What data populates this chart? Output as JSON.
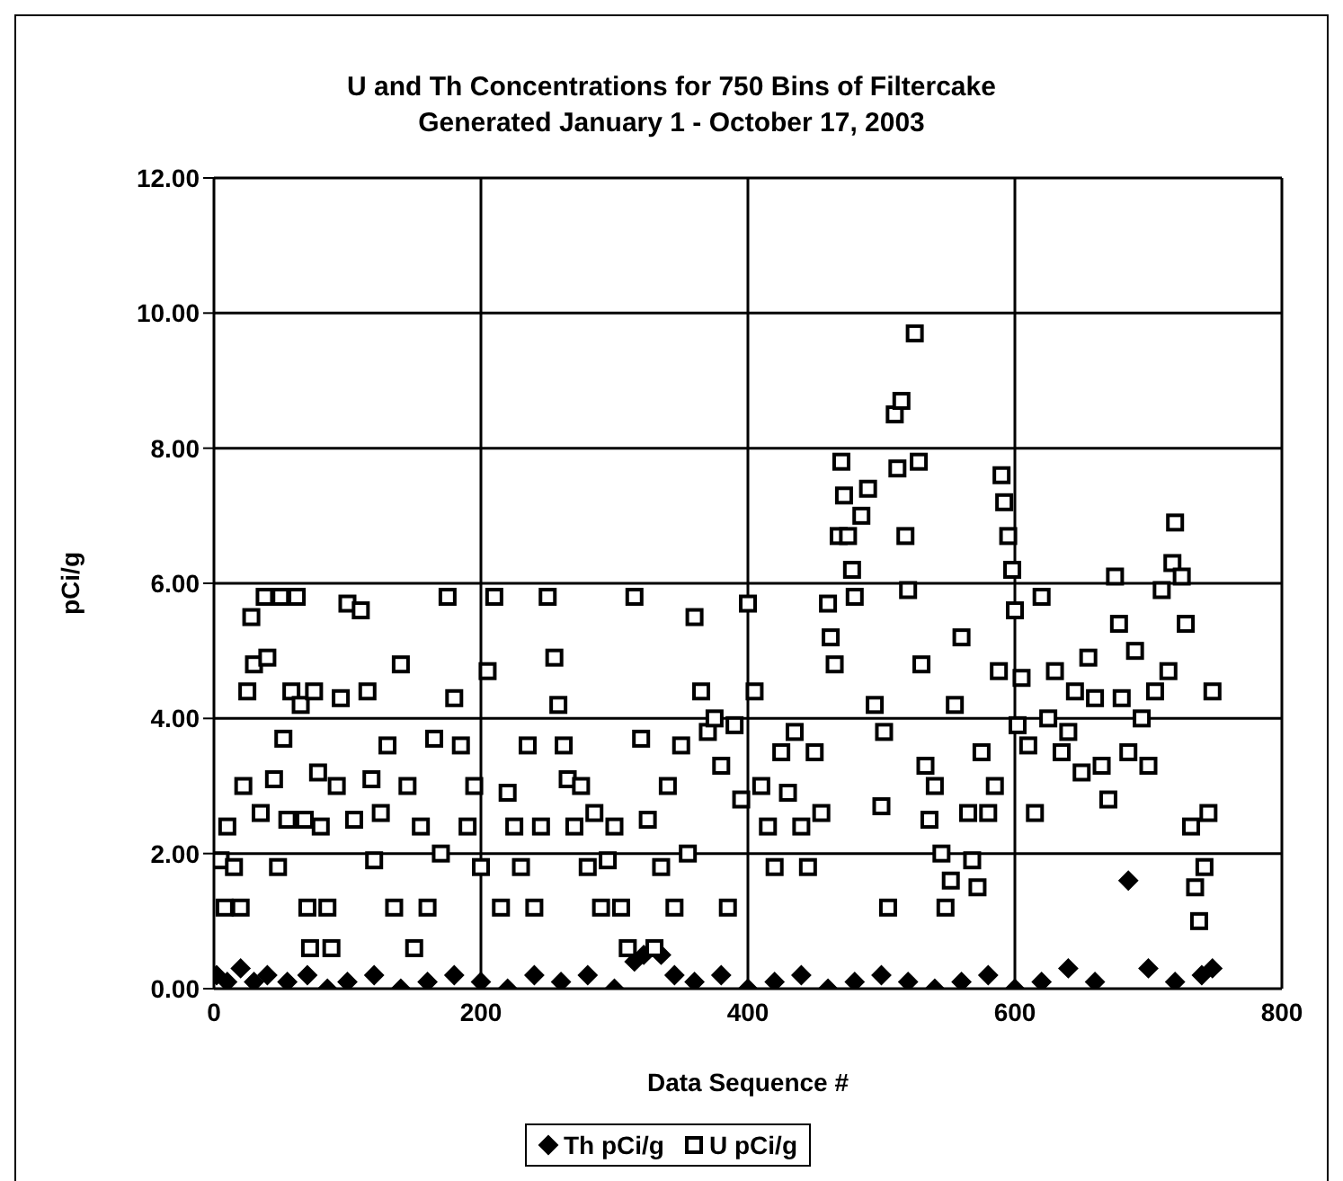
{
  "chart_data": {
    "type": "scatter",
    "title": "U and Th Concentrations for 750 Bins of Filtercake",
    "subtitle": "Generated January 1 - October 17, 2003",
    "xlabel": "Data Sequence #",
    "ylabel": "pCi/g",
    "xlim": [
      0,
      800
    ],
    "xticks": [
      0,
      200,
      400,
      600,
      800
    ],
    "ylim": [
      0,
      12
    ],
    "yticks": [
      {
        "value": 0,
        "label": "0.00"
      },
      {
        "value": 2,
        "label": "2.00"
      },
      {
        "value": 4,
        "label": "4.00"
      },
      {
        "value": 6,
        "label": "6.00"
      },
      {
        "value": 8,
        "label": "8.00"
      },
      {
        "value": 10,
        "label": "10.00"
      },
      {
        "value": 12,
        "label": "12.00"
      }
    ],
    "grid": true,
    "legend": "bottom",
    "series": [
      {
        "name": "Th pCi/g",
        "color": "#000000",
        "marker": "diamond",
        "x": [
          2,
          10,
          20,
          30,
          40,
          55,
          70,
          85,
          100,
          120,
          140,
          160,
          180,
          200,
          220,
          240,
          260,
          280,
          300,
          315,
          322,
          335,
          345,
          360,
          380,
          400,
          420,
          440,
          460,
          480,
          500,
          520,
          540,
          560,
          580,
          600,
          620,
          640,
          660,
          685,
          700,
          720,
          740,
          748
        ],
        "values": [
          0.2,
          0.1,
          0.3,
          0.1,
          0.2,
          0.1,
          0.2,
          0.0,
          0.1,
          0.2,
          0.0,
          0.1,
          0.2,
          0.1,
          0.0,
          0.2,
          0.1,
          0.2,
          0.0,
          0.4,
          0.5,
          0.5,
          0.2,
          0.1,
          0.2,
          0.0,
          0.1,
          0.2,
          0.0,
          0.1,
          0.2,
          0.1,
          0.0,
          0.1,
          0.2,
          0.0,
          0.1,
          0.3,
          0.1,
          1.6,
          0.3,
          0.1,
          0.2,
          0.3
        ]
      },
      {
        "name": "U pCi/g",
        "color": "#000000",
        "marker": "square",
        "x": [
          5,
          8,
          10,
          15,
          20,
          22,
          25,
          28,
          30,
          35,
          38,
          40,
          45,
          48,
          50,
          52,
          55,
          58,
          62,
          65,
          68,
          70,
          72,
          75,
          78,
          80,
          85,
          88,
          92,
          95,
          100,
          105,
          110,
          115,
          118,
          120,
          125,
          130,
          135,
          140,
          145,
          150,
          155,
          160,
          165,
          170,
          175,
          180,
          185,
          190,
          195,
          200,
          205,
          210,
          215,
          220,
          225,
          230,
          235,
          240,
          245,
          250,
          255,
          258,
          262,
          265,
          270,
          275,
          280,
          285,
          290,
          295,
          300,
          305,
          310,
          315,
          320,
          325,
          330,
          335,
          340,
          345,
          350,
          355,
          360,
          365,
          370,
          375,
          380,
          385,
          390,
          395,
          400,
          405,
          410,
          415,
          420,
          425,
          430,
          435,
          440,
          445,
          450,
          455,
          460,
          462,
          465,
          468,
          470,
          472,
          475,
          478,
          480,
          485,
          490,
          495,
          500,
          502,
          505,
          510,
          512,
          515,
          518,
          520,
          525,
          528,
          530,
          533,
          536,
          540,
          545,
          548,
          552,
          555,
          560,
          565,
          568,
          572,
          575,
          580,
          585,
          588,
          590,
          592,
          595,
          598,
          600,
          602,
          605,
          610,
          615,
          620,
          625,
          630,
          635,
          640,
          645,
          650,
          655,
          660,
          665,
          670,
          675,
          678,
          680,
          685,
          690,
          695,
          700,
          705,
          710,
          715,
          718,
          720,
          725,
          728,
          732,
          735,
          738,
          742,
          745,
          748
        ],
        "values": [
          1.9,
          1.2,
          2.4,
          1.8,
          1.2,
          3.0,
          4.4,
          5.5,
          4.8,
          2.6,
          5.8,
          4.9,
          3.1,
          1.8,
          5.8,
          3.7,
          2.5,
          4.4,
          5.8,
          4.2,
          2.5,
          1.2,
          0.6,
          4.4,
          3.2,
          2.4,
          1.2,
          0.6,
          3.0,
          4.3,
          5.7,
          2.5,
          5.6,
          4.4,
          3.1,
          1.9,
          2.6,
          3.6,
          1.2,
          4.8,
          3.0,
          0.6,
          2.4,
          1.2,
          3.7,
          2.0,
          5.8,
          4.3,
          3.6,
          2.4,
          3.0,
          1.8,
          4.7,
          5.8,
          1.2,
          2.9,
          2.4,
          1.8,
          3.6,
          1.2,
          2.4,
          5.8,
          4.9,
          4.2,
          3.6,
          3.1,
          2.4,
          3.0,
          1.8,
          2.6,
          1.2,
          1.9,
          2.4,
          1.2,
          0.6,
          5.8,
          3.7,
          2.5,
          0.6,
          1.8,
          3.0,
          1.2,
          3.6,
          2.0,
          5.5,
          4.4,
          3.8,
          4.0,
          3.3,
          1.2,
          3.9,
          2.8,
          5.7,
          4.4,
          3.0,
          2.4,
          1.8,
          3.5,
          2.9,
          3.8,
          2.4,
          1.8,
          3.5,
          2.6,
          5.7,
          5.2,
          4.8,
          6.7,
          7.8,
          7.3,
          6.7,
          6.2,
          5.8,
          7.0,
          7.4,
          4.2,
          2.7,
          3.8,
          1.2,
          8.5,
          7.7,
          8.7,
          6.7,
          5.9,
          9.7,
          7.8,
          4.8,
          3.3,
          2.5,
          3.0,
          2.0,
          1.2,
          1.6,
          4.2,
          5.2,
          2.6,
          1.9,
          1.5,
          3.5,
          2.6,
          3.0,
          4.7,
          7.6,
          7.2,
          6.7,
          6.2,
          5.6,
          3.9,
          4.6,
          3.6,
          2.6,
          5.8,
          4.0,
          4.7,
          3.5,
          3.8,
          4.4,
          3.2,
          4.9,
          4.3,
          3.3,
          2.8,
          6.1,
          5.4,
          4.3,
          3.5,
          5.0,
          4.0,
          3.3,
          4.4,
          5.9,
          4.7,
          6.3,
          6.9,
          6.1,
          5.4,
          2.4,
          1.5,
          1.0,
          1.8,
          2.6,
          4.4
        ]
      }
    ]
  }
}
